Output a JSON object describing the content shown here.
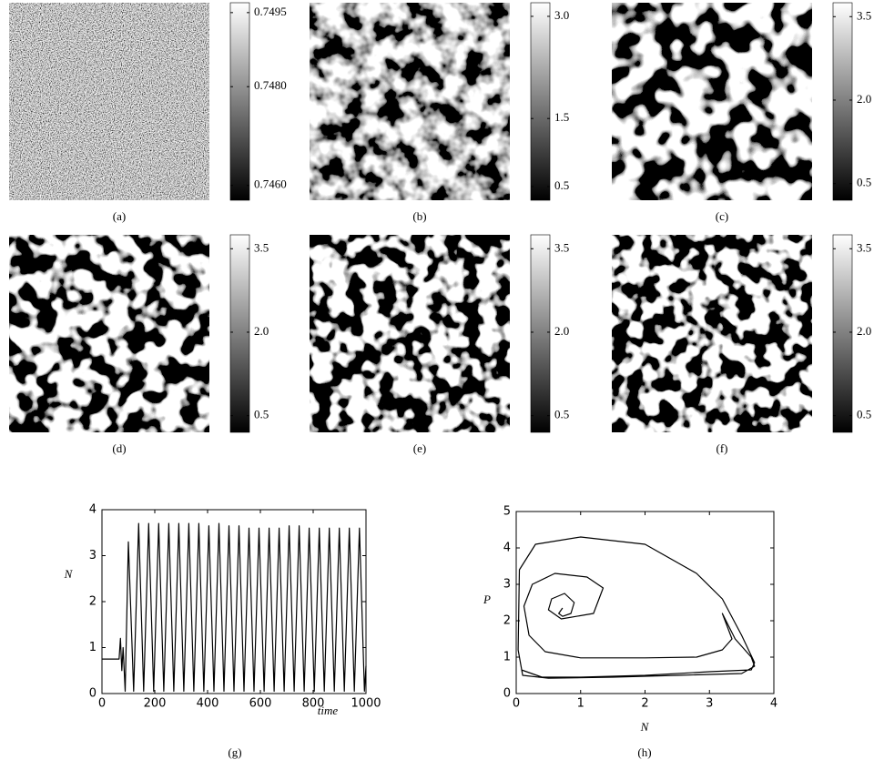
{
  "chart_data": [
    {
      "type": "heatmap",
      "label": "(a)",
      "clim": [
        0.7457,
        0.7497
      ],
      "cticks": [
        0.7495,
        {
          "value": 0.748,
          "label": "0.7480"
        },
        {
          "value": 0.746,
          "label": "0.7460"
        }
      ]
    },
    {
      "type": "heatmap",
      "label": "(b)",
      "clim": [
        0.3,
        3.2
      ],
      "cticks": [
        {
          "value": 3,
          "label": "3.0"
        },
        1.5,
        0.5
      ]
    },
    {
      "type": "heatmap",
      "label": "(c)",
      "clim": [
        0.2,
        3.75
      ],
      "cticks": [
        3.5,
        {
          "value": 2,
          "label": "2.0"
        },
        0.5
      ]
    },
    {
      "type": "heatmap",
      "label": "(d)",
      "clim": [
        0.2,
        3.75
      ],
      "cticks": [
        3.5,
        {
          "value": 2,
          "label": "2.0"
        },
        0.5
      ]
    },
    {
      "type": "heatmap",
      "label": "(e)",
      "clim": [
        0.2,
        3.75
      ],
      "cticks": [
        3.5,
        {
          "value": 2,
          "label": "2.0"
        },
        0.5
      ]
    },
    {
      "type": "heatmap",
      "label": "(f)",
      "clim": [
        0.2,
        3.75
      ],
      "cticks": [
        3.5,
        {
          "value": 2,
          "label": "2.0"
        },
        0.5
      ]
    },
    {
      "type": "line",
      "label": "(g)",
      "xlabel": "time",
      "ylabel": "N",
      "color": "#000000",
      "x": [
        0,
        65,
        70,
        75,
        80,
        88,
        100,
        120,
        139,
        158,
        177,
        196,
        215,
        234,
        253,
        272,
        291,
        310,
        329,
        348,
        367,
        386,
        405,
        424,
        443,
        462,
        481,
        500,
        519,
        538,
        557,
        576,
        595,
        614,
        633,
        652,
        671,
        690,
        709,
        728,
        747,
        766,
        785,
        804,
        823,
        842,
        861,
        880,
        899,
        918,
        937,
        956,
        975,
        994,
        1000
      ],
      "values": [
        0.75,
        0.75,
        1.2,
        0.5,
        1.0,
        0.05,
        3.3,
        0.05,
        3.7,
        0.05,
        3.7,
        0.05,
        3.7,
        0.05,
        3.7,
        0.05,
        3.7,
        0.05,
        3.7,
        0.05,
        3.7,
        0.05,
        3.65,
        0.05,
        3.7,
        0.05,
        3.65,
        0.05,
        3.65,
        0.05,
        3.6,
        0.05,
        3.6,
        0.05,
        3.6,
        0.05,
        3.6,
        0.05,
        3.65,
        0.05,
        3.65,
        0.05,
        3.6,
        0.05,
        3.6,
        0.05,
        3.6,
        0.05,
        3.6,
        0.05,
        3.6,
        0.05,
        3.6,
        0.05,
        0.6
      ],
      "xlim": [
        0,
        1000
      ],
      "xticks": [
        0,
        200,
        400,
        600,
        800,
        1000
      ],
      "ylim": [
        0,
        4
      ],
      "yticks": [
        0,
        1,
        2,
        3,
        4
      ]
    },
    {
      "type": "line",
      "label": "(h)",
      "xlabel": "N",
      "ylabel": "P",
      "color": "#000000",
      "x": [
        0.72,
        0.66,
        0.72,
        0.85,
        0.9,
        0.75,
        0.55,
        0.5,
        0.7,
        1.2,
        1.35,
        1.1,
        0.6,
        0.25,
        0.12,
        0.2,
        0.45,
        1.0,
        2.0,
        2.8,
        3.2,
        3.35,
        3.2,
        3.4,
        3.65,
        3.7,
        3.5,
        2.5,
        1.5,
        0.5,
        0.1,
        0.03,
        0.05,
        0.3,
        1.0,
        2.0,
        2.8,
        3.2,
        3.5,
        3.7,
        3.65,
        3.0,
        2.0,
        1.0,
        0.4,
        0.08
      ],
      "values": [
        2.35,
        2.2,
        2.12,
        2.2,
        2.5,
        2.75,
        2.6,
        2.3,
        2.05,
        2.2,
        2.9,
        3.2,
        3.3,
        3.0,
        2.4,
        1.6,
        1.15,
        0.98,
        0.98,
        1.0,
        1.2,
        1.5,
        2.2,
        1.5,
        1.0,
        0.75,
        0.55,
        0.5,
        0.45,
        0.42,
        0.5,
        1.2,
        3.4,
        4.1,
        4.3,
        4.1,
        3.3,
        2.6,
        1.6,
        0.85,
        0.65,
        0.6,
        0.5,
        0.45,
        0.45,
        0.65
      ],
      "xlim": [
        0,
        4
      ],
      "xticks": [
        0,
        1,
        2,
        3,
        4
      ],
      "ylim": [
        0,
        5
      ],
      "yticks": [
        0,
        1,
        2,
        3,
        4,
        5
      ]
    }
  ]
}
